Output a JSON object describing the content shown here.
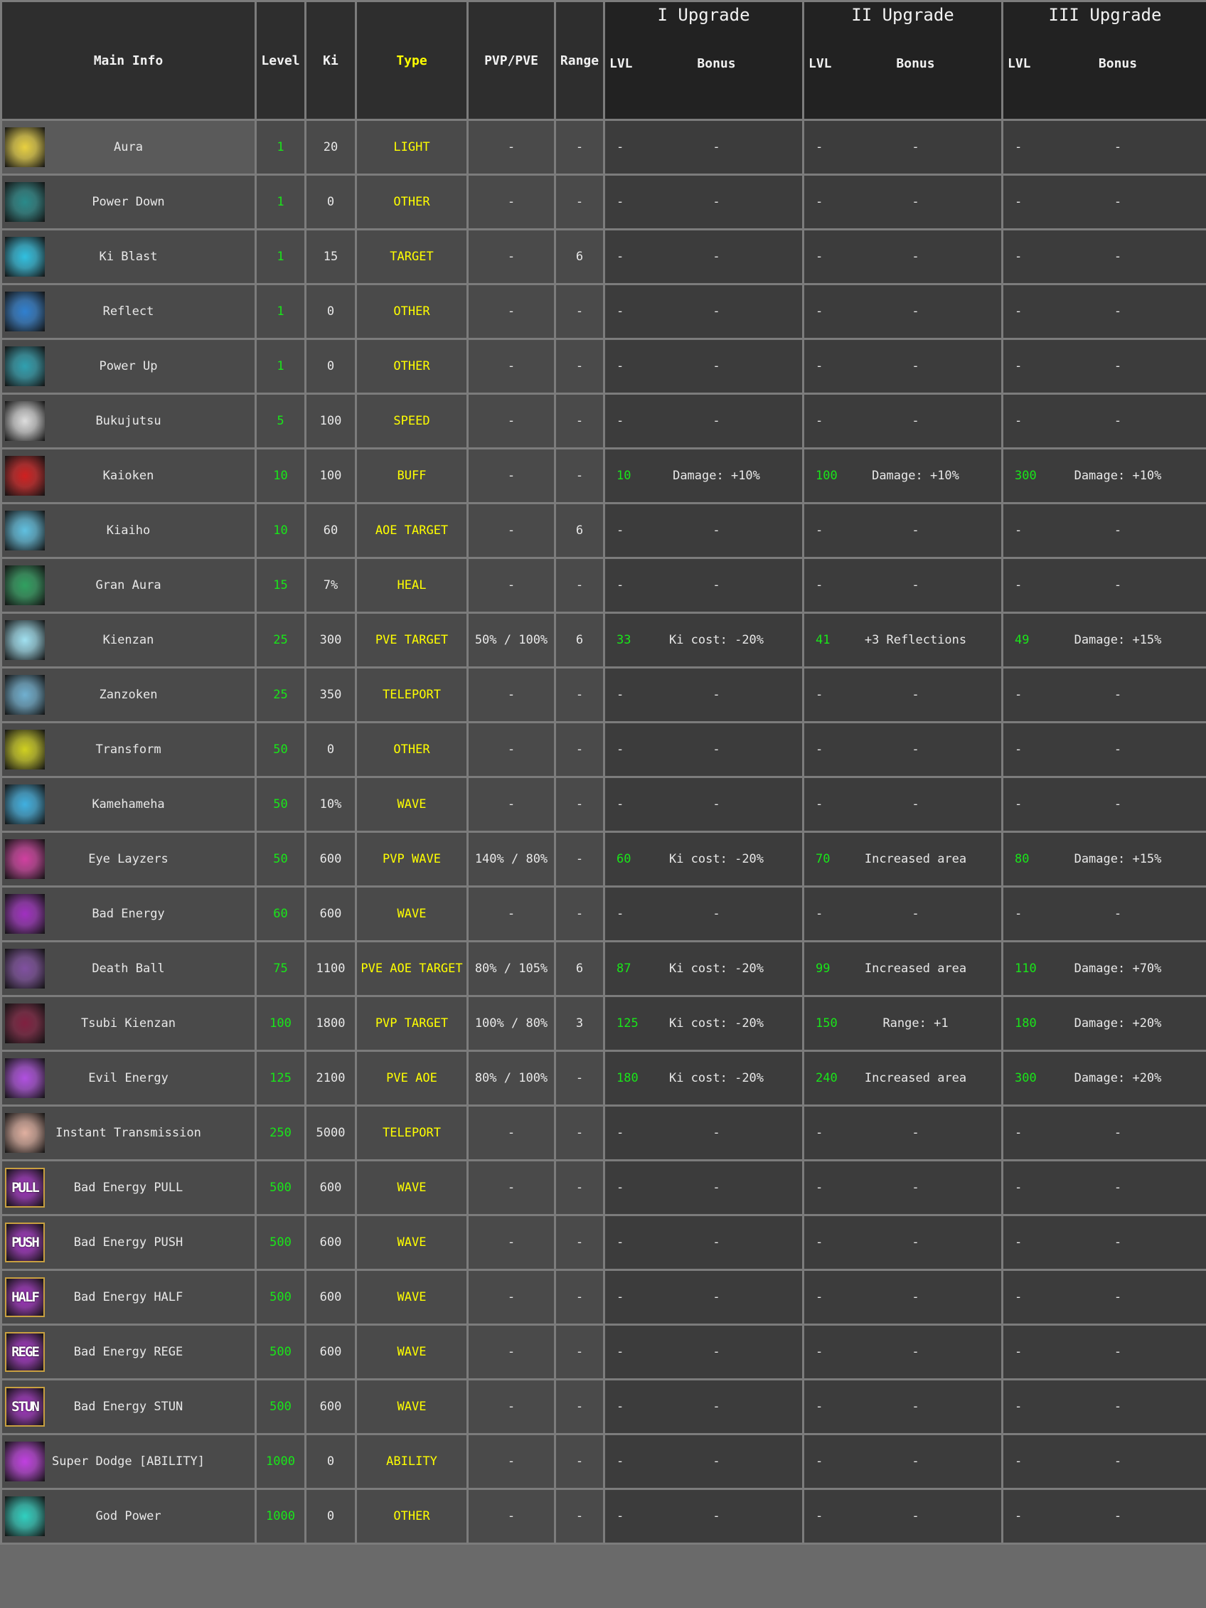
{
  "colors": {
    "level": "#19e619",
    "type": "#ffff00",
    "text": "#e8e8e8",
    "header_bg": "#2e2e2e",
    "upgrade_header_bg": "#222222",
    "row_bg": "#4a4a4a",
    "upgrade_bg": "#3c3c3c"
  },
  "header": {
    "main_info": "Main Info",
    "level": "Level",
    "ki": "Ki",
    "type": "Type",
    "pvp_pve": "PVP/PVE",
    "range": "Range",
    "upgrades": [
      {
        "title": "I Upgrade",
        "lvl": "LVL",
        "bonus": "Bonus"
      },
      {
        "title": "II Upgrade",
        "lvl": "LVL",
        "bonus": "Bonus"
      },
      {
        "title": "III Upgrade",
        "lvl": "LVL",
        "bonus": "Bonus"
      }
    ]
  },
  "rows": [
    {
      "name": "Aura",
      "icon": "aura-icon",
      "icon_color": "#e8d040",
      "level": "1",
      "ki": "20",
      "type": "LIGHT",
      "pvp_pve": "-",
      "range": "-",
      "up": [
        [
          "-",
          "-"
        ],
        [
          "-",
          "-"
        ],
        [
          "-",
          "-"
        ]
      ]
    },
    {
      "name": "Power Down",
      "icon": "power-down-icon",
      "icon_color": "#2a8a8a",
      "level": "1",
      "ki": "0",
      "type": "OTHER",
      "pvp_pve": "-",
      "range": "-",
      "up": [
        [
          "-",
          "-"
        ],
        [
          "-",
          "-"
        ],
        [
          "-",
          "-"
        ]
      ]
    },
    {
      "name": "Ki Blast",
      "icon": "ki-blast-icon",
      "icon_color": "#30c0e0",
      "level": "1",
      "ki": "15",
      "type": "TARGET",
      "pvp_pve": "-",
      "range": "6",
      "up": [
        [
          "-",
          "-"
        ],
        [
          "-",
          "-"
        ],
        [
          "-",
          "-"
        ]
      ]
    },
    {
      "name": "Reflect",
      "icon": "reflect-icon",
      "icon_color": "#3080d0",
      "level": "1",
      "ki": "0",
      "type": "OTHER",
      "pvp_pve": "-",
      "range": "-",
      "up": [
        [
          "-",
          "-"
        ],
        [
          "-",
          "-"
        ],
        [
          "-",
          "-"
        ]
      ]
    },
    {
      "name": "Power Up",
      "icon": "power-up-icon",
      "icon_color": "#30a0b0",
      "level": "1",
      "ki": "0",
      "type": "OTHER",
      "pvp_pve": "-",
      "range": "-",
      "up": [
        [
          "-",
          "-"
        ],
        [
          "-",
          "-"
        ],
        [
          "-",
          "-"
        ]
      ]
    },
    {
      "name": "Bukujutsu",
      "icon": "bukujutsu-icon",
      "icon_color": "#dddddd",
      "level": "5",
      "ki": "100",
      "type": "SPEED",
      "pvp_pve": "-",
      "range": "-",
      "up": [
        [
          "-",
          "-"
        ],
        [
          "-",
          "-"
        ],
        [
          "-",
          "-"
        ]
      ]
    },
    {
      "name": "Kaioken",
      "icon": "kaioken-icon",
      "icon_color": "#d02020",
      "level": "10",
      "ki": "100",
      "type": "BUFF",
      "pvp_pve": "-",
      "range": "-",
      "up": [
        [
          "10",
          "Damage: +10%"
        ],
        [
          "100",
          "Damage: +10%"
        ],
        [
          "300",
          "Damage: +10%"
        ]
      ]
    },
    {
      "name": "Kiaiho",
      "icon": "kiaiho-icon",
      "icon_color": "#60c0e0",
      "level": "10",
      "ki": "60",
      "type": "AOE TARGET",
      "pvp_pve": "-",
      "range": "6",
      "up": [
        [
          "-",
          "-"
        ],
        [
          "-",
          "-"
        ],
        [
          "-",
          "-"
        ]
      ]
    },
    {
      "name": "Gran Aura",
      "icon": "gran-aura-icon",
      "icon_color": "#30a060",
      "level": "15",
      "ki": "7%",
      "type": "HEAL",
      "pvp_pve": "-",
      "range": "-",
      "up": [
        [
          "-",
          "-"
        ],
        [
          "-",
          "-"
        ],
        [
          "-",
          "-"
        ]
      ]
    },
    {
      "name": "Kienzan",
      "icon": "kienzan-icon",
      "icon_color": "#a0e0f0",
      "level": "25",
      "ki": "300",
      "type": "PVE TARGET",
      "pvp_pve": "50% / 100%",
      "range": "6",
      "up": [
        [
          "33",
          "Ki cost: -20%"
        ],
        [
          "41",
          "+3 Reflections"
        ],
        [
          "49",
          "Damage: +15%"
        ]
      ]
    },
    {
      "name": "Zanzoken",
      "icon": "zanzoken-icon",
      "icon_color": "#70b0d0",
      "level": "25",
      "ki": "350",
      "type": "TELEPORT",
      "pvp_pve": "-",
      "range": "-",
      "up": [
        [
          "-",
          "-"
        ],
        [
          "-",
          "-"
        ],
        [
          "-",
          "-"
        ]
      ]
    },
    {
      "name": "Transform",
      "icon": "transform-icon",
      "icon_color": "#d0d020",
      "level": "50",
      "ki": "0",
      "type": "OTHER",
      "pvp_pve": "-",
      "range": "-",
      "up": [
        [
          "-",
          "-"
        ],
        [
          "-",
          "-"
        ],
        [
          "-",
          "-"
        ]
      ]
    },
    {
      "name": "Kamehameha",
      "icon": "kamehameha-icon",
      "icon_color": "#40b0e0",
      "level": "50",
      "ki": "10%",
      "type": "WAVE",
      "pvp_pve": "-",
      "range": "-",
      "up": [
        [
          "-",
          "-"
        ],
        [
          "-",
          "-"
        ],
        [
          "-",
          "-"
        ]
      ]
    },
    {
      "name": "Eye Layzers",
      "icon": "eye-layzers-icon",
      "icon_color": "#d040a0",
      "level": "50",
      "ki": "600",
      "type": "PVP WAVE",
      "pvp_pve": "140% / 80%",
      "range": "-",
      "up": [
        [
          "60",
          "Ki cost: -20%"
        ],
        [
          "70",
          "Increased area"
        ],
        [
          "80",
          "Damage: +15%"
        ]
      ]
    },
    {
      "name": "Bad Energy",
      "icon": "bad-energy-icon",
      "icon_color": "#a030c0",
      "level": "60",
      "ki": "600",
      "type": "WAVE",
      "pvp_pve": "-",
      "range": "-",
      "up": [
        [
          "-",
          "-"
        ],
        [
          "-",
          "-"
        ],
        [
          "-",
          "-"
        ]
      ]
    },
    {
      "name": "Death Ball",
      "icon": "death-ball-icon",
      "icon_color": "#8050a0",
      "level": "75",
      "ki": "1100",
      "type": "PVE AOE TARGET",
      "pvp_pve": "80% / 105%",
      "range": "6",
      "up": [
        [
          "87",
          "Ki cost: -20%"
        ],
        [
          "99",
          "Increased area"
        ],
        [
          "110",
          "Damage: +70%"
        ]
      ]
    },
    {
      "name": "Tsubi Kienzan",
      "icon": "tsubi-kienzan-icon",
      "icon_color": "#802040",
      "level": "100",
      "ki": "1800",
      "type": "PVP TARGET",
      "pvp_pve": "100% / 80%",
      "range": "3",
      "up": [
        [
          "125",
          "Ki cost: -20%"
        ],
        [
          "150",
          "Range: +1"
        ],
        [
          "180",
          "Damage: +20%"
        ]
      ]
    },
    {
      "name": "Evil Energy",
      "icon": "evil-energy-icon",
      "icon_color": "#b050e0",
      "level": "125",
      "ki": "2100",
      "type": "PVE AOE",
      "pvp_pve": "80% / 100%",
      "range": "-",
      "up": [
        [
          "180",
          "Ki cost: -20%"
        ],
        [
          "240",
          "Increased area"
        ],
        [
          "300",
          "Damage: +20%"
        ]
      ]
    },
    {
      "name": "Instant Transmission",
      "icon": "instant-transmission-icon",
      "icon_color": "#e0b0a0",
      "level": "250",
      "ki": "5000",
      "type": "TELEPORT",
      "pvp_pve": "-",
      "range": "-",
      "up": [
        [
          "-",
          "-"
        ],
        [
          "-",
          "-"
        ],
        [
          "-",
          "-"
        ]
      ]
    },
    {
      "name": "Bad Energy PULL",
      "icon": "bad-energy-pull-icon",
      "icon_label": "PULL",
      "icon_color": "#a030c0",
      "level": "500",
      "ki": "600",
      "type": "WAVE",
      "pvp_pve": "-",
      "range": "-",
      "up": [
        [
          "-",
          "-"
        ],
        [
          "-",
          "-"
        ],
        [
          "-",
          "-"
        ]
      ]
    },
    {
      "name": "Bad Energy PUSH",
      "icon": "bad-energy-push-icon",
      "icon_label": "PUSH",
      "icon_color": "#a030c0",
      "level": "500",
      "ki": "600",
      "type": "WAVE",
      "pvp_pve": "-",
      "range": "-",
      "up": [
        [
          "-",
          "-"
        ],
        [
          "-",
          "-"
        ],
        [
          "-",
          "-"
        ]
      ]
    },
    {
      "name": "Bad Energy HALF",
      "icon": "bad-energy-half-icon",
      "icon_label": "HALF",
      "icon_color": "#a030c0",
      "level": "500",
      "ki": "600",
      "type": "WAVE",
      "pvp_pve": "-",
      "range": "-",
      "up": [
        [
          "-",
          "-"
        ],
        [
          "-",
          "-"
        ],
        [
          "-",
          "-"
        ]
      ]
    },
    {
      "name": "Bad Energy REGE",
      "icon": "bad-energy-rege-icon",
      "icon_label": "REGE",
      "icon_color": "#a030c0",
      "level": "500",
      "ki": "600",
      "type": "WAVE",
      "pvp_pve": "-",
      "range": "-",
      "up": [
        [
          "-",
          "-"
        ],
        [
          "-",
          "-"
        ],
        [
          "-",
          "-"
        ]
      ]
    },
    {
      "name": "Bad Energy STUN",
      "icon": "bad-energy-stun-icon",
      "icon_label": "STUN",
      "icon_color": "#a030c0",
      "level": "500",
      "ki": "600",
      "type": "WAVE",
      "pvp_pve": "-",
      "range": "-",
      "up": [
        [
          "-",
          "-"
        ],
        [
          "-",
          "-"
        ],
        [
          "-",
          "-"
        ]
      ]
    },
    {
      "name": "Super Dodge [ABILITY]",
      "icon": "super-dodge-icon",
      "icon_color": "#c040e0",
      "level": "1000",
      "ki": "0",
      "type": "ABILITY",
      "pvp_pve": "-",
      "range": "-",
      "up": [
        [
          "-",
          "-"
        ],
        [
          "-",
          "-"
        ],
        [
          "-",
          "-"
        ]
      ]
    },
    {
      "name": "God Power",
      "icon": "god-power-icon",
      "icon_color": "#30d0c0",
      "level": "1000",
      "ki": "0",
      "type": "OTHER",
      "pvp_pve": "-",
      "range": "-",
      "up": [
        [
          "-",
          "-"
        ],
        [
          "-",
          "-"
        ],
        [
          "-",
          "-"
        ]
      ]
    }
  ]
}
